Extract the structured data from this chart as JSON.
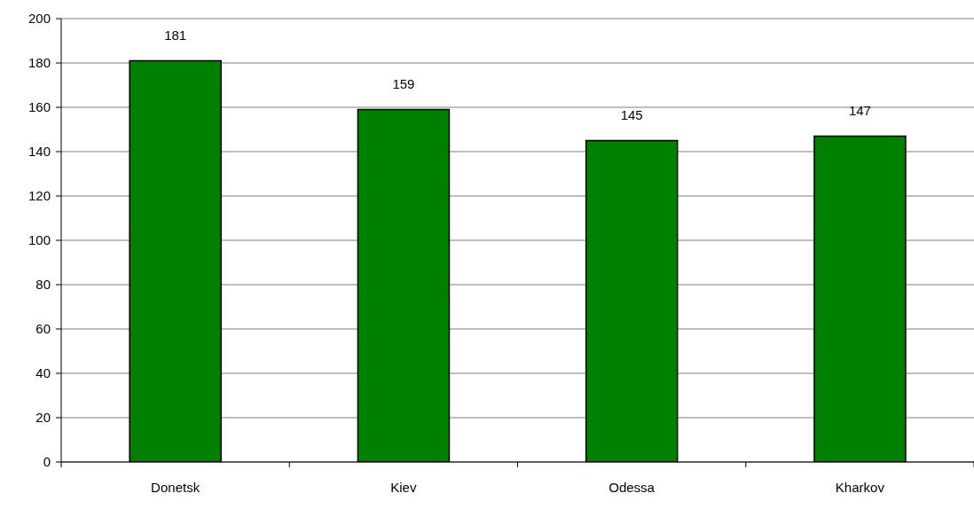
{
  "chart_data": {
    "type": "bar",
    "categories": [
      "Donetsk",
      "Kiev",
      "Odessa",
      "Kharkov"
    ],
    "values": [
      181,
      159,
      145,
      147
    ],
    "color": "#008000",
    "ylim": [
      0,
      200
    ],
    "yticks": [
      0,
      20,
      40,
      60,
      80,
      100,
      120,
      140,
      160,
      180,
      200
    ],
    "grid": "y",
    "data_labels": true
  }
}
